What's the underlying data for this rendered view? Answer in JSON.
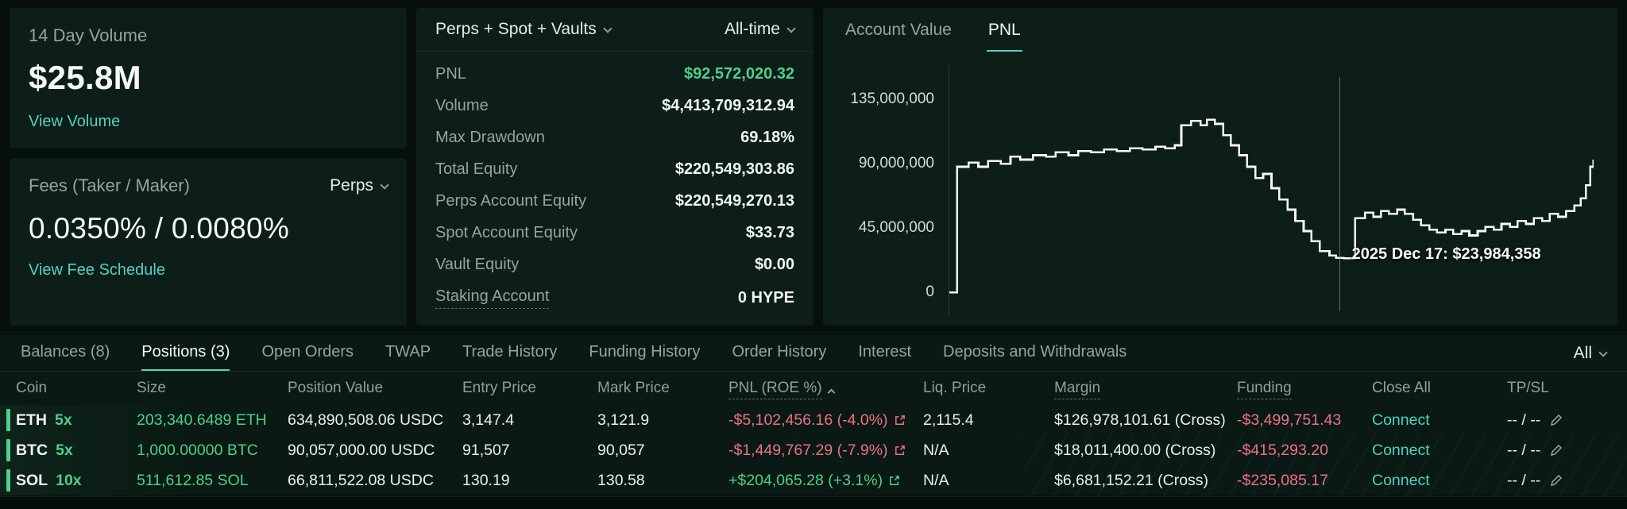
{
  "theme": {
    "background": "#050f0b",
    "panel": "#0d1d17",
    "accent_teal": "#50d2c1",
    "positive_green": "#4cd08d",
    "negative_red": "#ed7088",
    "text_muted": "#93a5a0",
    "text_primary": "#f2f8f5"
  },
  "volume_card": {
    "title": "14 Day Volume",
    "value": "$25.8M",
    "link": "View Volume"
  },
  "fees_card": {
    "title": "Fees (Taker / Maker)",
    "market_dropdown": "Perps",
    "value": "0.0350% / 0.0080%",
    "link": "View Fee Schedule"
  },
  "stats_panel": {
    "scope_dropdown": "Perps + Spot + Vaults",
    "range_dropdown": "All-time",
    "rows": [
      {
        "label": "PNL",
        "value": "$92,572,020.32"
      },
      {
        "label": "Volume",
        "value": "$4,413,709,312.94"
      },
      {
        "label": "Max Drawdown",
        "value": "69.18%"
      },
      {
        "label": "Total Equity",
        "value": "$220,549,303.86"
      },
      {
        "label": "Perps Account Equity",
        "value": "$220,549,270.13"
      },
      {
        "label": "Spot Account Equity",
        "value": "$33.73"
      },
      {
        "label": "Vault Equity",
        "value": "$0.00"
      },
      {
        "label": "Staking Account",
        "value": "0 HYPE"
      }
    ]
  },
  "chart_panel": {
    "tabs": [
      "Account Value",
      "PNL"
    ],
    "active_tab": "PNL"
  },
  "chart_data": {
    "type": "line",
    "step": true,
    "title": "PNL",
    "legend": false,
    "grid": false,
    "ylim": [
      0,
      158000000
    ],
    "yticks": [
      0,
      45000000,
      90000000,
      135000000
    ],
    "ytick_labels": [
      "0",
      "45,000,000",
      "90,000,000",
      "135,000,000"
    ],
    "annotation": {
      "x": 0.605,
      "date": "2025 Dec 17",
      "value": 23984358,
      "label": "2025 Dec 17: $23,984,358"
    },
    "series": [
      {
        "name": "PNL",
        "points": [
          [
            0.0,
            0
          ],
          [
            0.01,
            0
          ],
          [
            0.012,
            88000000
          ],
          [
            0.03,
            91000000
          ],
          [
            0.045,
            88000000
          ],
          [
            0.06,
            92000000
          ],
          [
            0.08,
            90000000
          ],
          [
            0.095,
            95000000
          ],
          [
            0.11,
            93000000
          ],
          [
            0.13,
            96000000
          ],
          [
            0.15,
            95000000
          ],
          [
            0.165,
            98000000
          ],
          [
            0.185,
            96000000
          ],
          [
            0.2,
            99000000
          ],
          [
            0.22,
            98000000
          ],
          [
            0.24,
            100000000
          ],
          [
            0.26,
            99000000
          ],
          [
            0.28,
            101000000
          ],
          [
            0.3,
            100000000
          ],
          [
            0.32,
            102000000
          ],
          [
            0.335,
            101000000
          ],
          [
            0.35,
            103000000
          ],
          [
            0.36,
            117000000
          ],
          [
            0.375,
            120000000
          ],
          [
            0.39,
            117000000
          ],
          [
            0.4,
            121000000
          ],
          [
            0.412,
            118000000
          ],
          [
            0.425,
            110000000
          ],
          [
            0.437,
            103000000
          ],
          [
            0.45,
            96000000
          ],
          [
            0.462,
            88000000
          ],
          [
            0.475,
            80000000
          ],
          [
            0.487,
            83000000
          ],
          [
            0.5,
            73000000
          ],
          [
            0.512,
            65000000
          ],
          [
            0.525,
            58000000
          ],
          [
            0.537,
            50000000
          ],
          [
            0.55,
            43000000
          ],
          [
            0.562,
            36000000
          ],
          [
            0.575,
            29000000
          ],
          [
            0.59,
            26000000
          ],
          [
            0.6,
            24300000
          ],
          [
            0.612,
            23984358
          ],
          [
            0.63,
            52000000
          ],
          [
            0.645,
            56000000
          ],
          [
            0.658,
            53000000
          ],
          [
            0.67,
            57000000
          ],
          [
            0.682,
            55000000
          ],
          [
            0.695,
            58000000
          ],
          [
            0.707,
            55000000
          ],
          [
            0.72,
            51000000
          ],
          [
            0.732,
            47000000
          ],
          [
            0.745,
            44000000
          ],
          [
            0.757,
            42000000
          ],
          [
            0.77,
            44000000
          ],
          [
            0.782,
            41000000
          ],
          [
            0.795,
            43000000
          ],
          [
            0.807,
            40000000
          ],
          [
            0.82,
            43000000
          ],
          [
            0.832,
            46000000
          ],
          [
            0.845,
            44000000
          ],
          [
            0.857,
            48000000
          ],
          [
            0.87,
            46000000
          ],
          [
            0.882,
            50000000
          ],
          [
            0.895,
            48000000
          ],
          [
            0.907,
            52000000
          ],
          [
            0.92,
            50000000
          ],
          [
            0.932,
            55000000
          ],
          [
            0.945,
            53000000
          ],
          [
            0.957,
            57000000
          ],
          [
            0.97,
            61000000
          ],
          [
            0.98,
            66000000
          ],
          [
            0.988,
            75000000
          ],
          [
            0.995,
            88000000
          ],
          [
            1.0,
            93000000
          ]
        ]
      }
    ]
  },
  "tabs_bar": {
    "items": [
      "Balances (8)",
      "Positions (3)",
      "Open Orders",
      "TWAP",
      "Trade History",
      "Funding History",
      "Order History",
      "Interest",
      "Deposits and Withdrawals"
    ],
    "active": "Positions (3)",
    "filter": "All"
  },
  "positions_table": {
    "columns": [
      "Coin",
      "Size",
      "Position Value",
      "Entry Price",
      "Mark Price",
      "PNL (ROE %)",
      "Liq. Price",
      "Margin",
      "Funding",
      "Close All",
      "TP/SL"
    ],
    "rows": [
      {
        "coin": "ETH",
        "leverage": "5x",
        "size": "203,340.6489 ETH",
        "position_value": "634,890,508.06 USDC",
        "entry_price": "3,147.4",
        "mark_price": "3,121.9",
        "pnl": "-$5,102,456.16 (-4.0%)",
        "pnl_positive": false,
        "liq_price": "2,115.4",
        "margin": "$126,978,101.61 (Cross)",
        "funding": "-$3,499,751.43",
        "close_action": "Connect",
        "tp_sl": "-- / --"
      },
      {
        "coin": "BTC",
        "leverage": "5x",
        "size": "1,000.00000 BTC",
        "position_value": "90,057,000.00 USDC",
        "entry_price": "91,507",
        "mark_price": "90,057",
        "pnl": "-$1,449,767.29 (-7.9%)",
        "pnl_positive": false,
        "liq_price": "N/A",
        "margin": "$18,011,400.00 (Cross)",
        "funding": "-$415,293.20",
        "close_action": "Connect",
        "tp_sl": "-- / --"
      },
      {
        "coin": "SOL",
        "leverage": "10x",
        "size": "511,612.85 SOL",
        "position_value": "66,811,522.08 USDC",
        "entry_price": "130.19",
        "mark_price": "130.58",
        "pnl": "+$204,065.28 (+3.1%)",
        "pnl_positive": true,
        "liq_price": "N/A",
        "margin": "$6,681,152.21 (Cross)",
        "funding": "-$235,085.17",
        "close_action": "Connect",
        "tp_sl": "-- / --"
      }
    ]
  }
}
